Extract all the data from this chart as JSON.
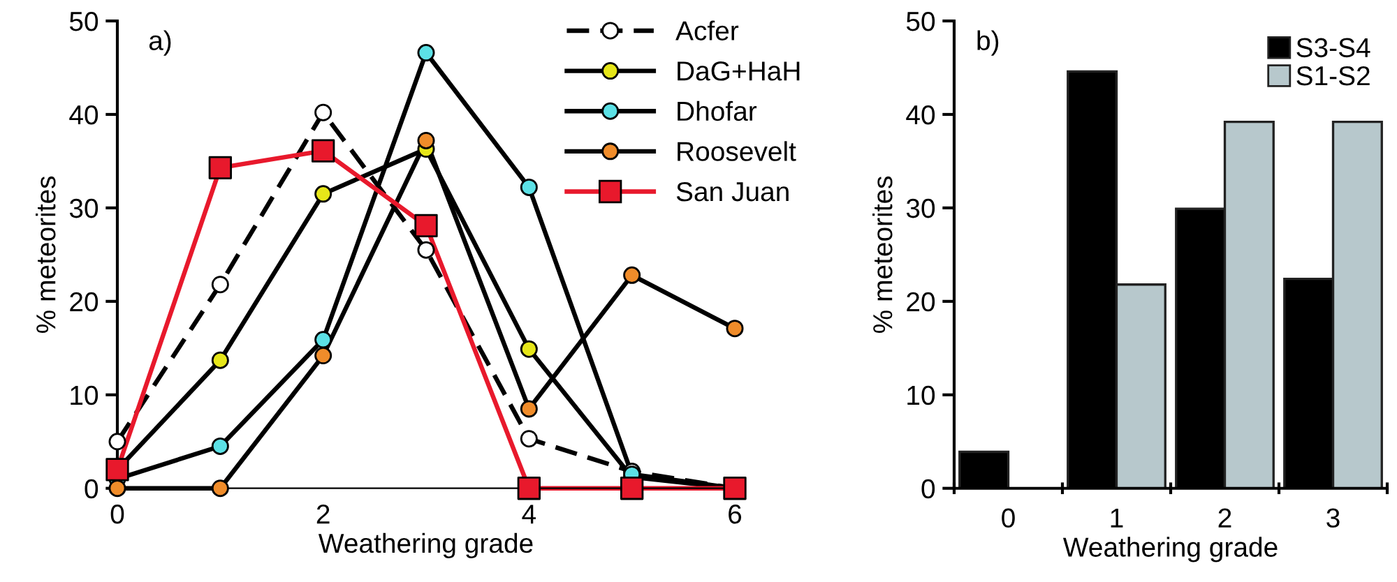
{
  "chart_data": [
    {
      "type": "line",
      "annotations": [
        "a)"
      ],
      "xlabel": "Weathering grade",
      "ylabel": "% meteorites",
      "x": [
        0,
        1,
        2,
        3,
        4,
        5,
        6
      ],
      "xlim": [
        0,
        6
      ],
      "xticks": [
        0,
        2,
        4,
        6
      ],
      "ylim": [
        0,
        50
      ],
      "yticks": [
        0,
        10,
        20,
        30,
        40,
        50
      ],
      "grid": false,
      "legend": "top right",
      "marker": "circle",
      "series": [
        {
          "name": "Acfer",
          "color": "#000000",
          "colors": [
            "#ffffff",
            "#ffffff",
            "#ffffff",
            "#ffffff",
            "#ffffff",
            "#ffffff",
            "#ffffff"
          ],
          "line_style": "dashed",
          "values": [
            5,
            21.8,
            40.2,
            25.5,
            5.3,
            1.8,
            0
          ]
        },
        {
          "name": "DaG+HaH",
          "color": "#000000",
          "colors": [
            "#e6e619",
            "#e6e619",
            "#e6e619",
            "#e6e619",
            "#e6e619",
            "#e6e619",
            "#e6e619"
          ],
          "line_style": "solid",
          "values": [
            2,
            13.7,
            31.5,
            36.3,
            14.9,
            1.2,
            0
          ]
        },
        {
          "name": "Dhofar",
          "color": "#000000",
          "colors": [
            "#5ce1e6",
            "#5ce1e6",
            "#5ce1e6",
            "#5ce1e6",
            "#5ce1e6",
            "#5ce1e6",
            "#5ce1e6"
          ],
          "line_style": "solid",
          "values": [
            1,
            4.5,
            15.9,
            46.6,
            32.2,
            1.5,
            0
          ]
        },
        {
          "name": "Roosevelt",
          "color": "#000000",
          "colors": [
            "#f08c2a",
            "#f08c2a",
            "#f08c2a",
            "#f08c2a",
            "#f08c2a",
            "#f08c2a",
            "#f08c2a"
          ],
          "line_style": "solid",
          "values": [
            0,
            0,
            14.2,
            37.2,
            8.5,
            22.8,
            17.1
          ]
        },
        {
          "name": "San Juan",
          "color": "#e8192c",
          "colors": [
            "#e8192c",
            "#e8192c",
            "#e8192c",
            "#e8192c",
            "#e8192c",
            "#e8192c",
            "#e8192c"
          ],
          "line_style": "solid",
          "marker": "square",
          "values": [
            2,
            34.3,
            36.1,
            28.1,
            0,
            0,
            0
          ]
        }
      ]
    },
    {
      "type": "bar",
      "annotations": [
        "b)"
      ],
      "xlabel": "Weathering grade",
      "ylabel": "% meteorites",
      "categories": [
        "0",
        "1",
        "2",
        "3"
      ],
      "ylim": [
        0,
        50
      ],
      "yticks": [
        0,
        10,
        20,
        30,
        40,
        50
      ],
      "grid": false,
      "legend": "top right",
      "series": [
        {
          "name": "S3-S4",
          "color": "#000000",
          "values": [
            3.9,
            44.6,
            29.9,
            22.4
          ]
        },
        {
          "name": "S1-S2",
          "color": "#b7c8cc",
          "values": [
            null,
            21.8,
            39.2,
            39.2
          ]
        }
      ]
    }
  ]
}
